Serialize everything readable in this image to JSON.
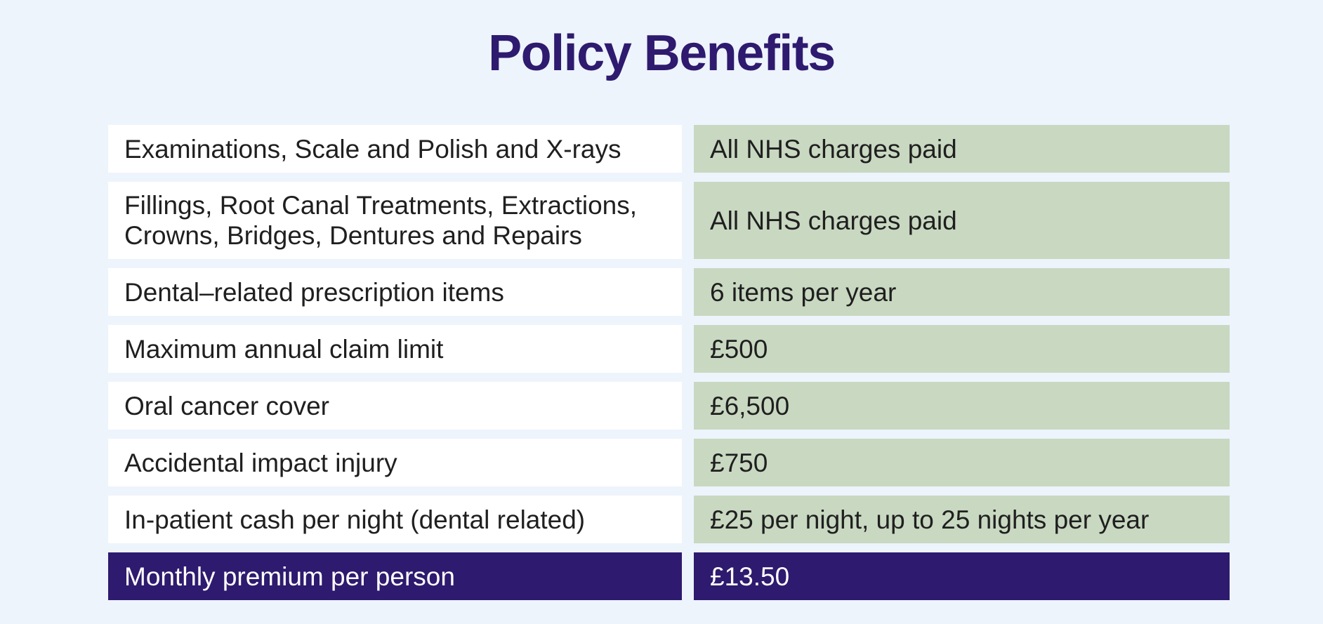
{
  "header": {
    "title": "Policy Benefits"
  },
  "table": {
    "rows": [
      [
        "Examinations, Scale and Polish and X-rays",
        "All NHS charges paid"
      ],
      [
        "Fillings, Root Canal Treatments, Extractions, Crowns, Bridges, Dentures and Repairs",
        "All NHS charges paid"
      ],
      [
        "Dental–related prescription items",
        "6 items per year"
      ],
      [
        "Maximum annual claim limit",
        "£500"
      ],
      [
        "Oral cancer cover",
        "£6,500"
      ],
      [
        "Accidental impact injury",
        "£750"
      ],
      [
        "In-patient cash per night (dental related)",
        "£25 per night, up to 25 nights per year"
      ],
      [
        "Monthly premium per person",
        "£13.50"
      ]
    ]
  }
}
